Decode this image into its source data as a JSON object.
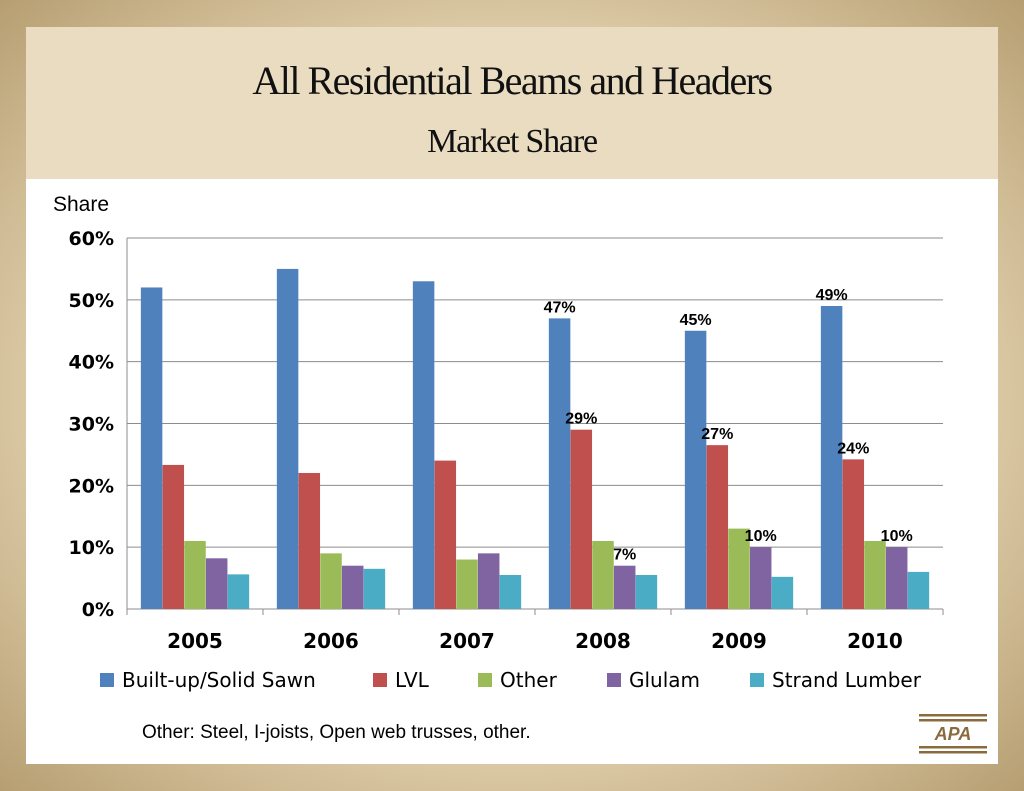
{
  "title": "All Residential Beams and Headers",
  "subtitle": "Market Share",
  "footnote": "Other: Steel, I-joists, Open web trusses, other.",
  "logo_text": "APA",
  "chart_data": {
    "type": "bar",
    "ylabel": "Share",
    "xlabel": "",
    "ylim": [
      0,
      60
    ],
    "yticks": [
      "0%",
      "10%",
      "20%",
      "30%",
      "40%",
      "50%",
      "60%"
    ],
    "grid": true,
    "legend_position": "bottom",
    "categories": [
      "2005",
      "2006",
      "2007",
      "2008",
      "2009",
      "2010"
    ],
    "series": [
      {
        "name": "Built-up/Solid Sawn",
        "color": "#4f81bd",
        "values": [
          52,
          55,
          53,
          47,
          45,
          49
        ],
        "labels": [
          "",
          "",
          "",
          "47%",
          "45%",
          "49%"
        ]
      },
      {
        "name": "LVL",
        "color": "#c0504d",
        "values": [
          23.3,
          22,
          24,
          29,
          26.5,
          24.2
        ],
        "labels": [
          "",
          "",
          "",
          "29%",
          "27%",
          "24%"
        ]
      },
      {
        "name": "Other",
        "color": "#9bbb59",
        "values": [
          11,
          9,
          8,
          11,
          13,
          11
        ],
        "labels": [
          "",
          "",
          "",
          "",
          "",
          ""
        ]
      },
      {
        "name": "Glulam",
        "color": "#8064a2",
        "values": [
          8.2,
          7,
          9,
          7,
          10,
          10
        ],
        "labels": [
          "",
          "",
          "",
          "7%",
          "10%",
          "10%"
        ]
      },
      {
        "name": "Strand Lumber",
        "color": "#4bacc6",
        "values": [
          5.6,
          6.5,
          5.5,
          5.5,
          5.2,
          6
        ],
        "labels": [
          "",
          "",
          "",
          "",
          "",
          ""
        ]
      }
    ]
  }
}
